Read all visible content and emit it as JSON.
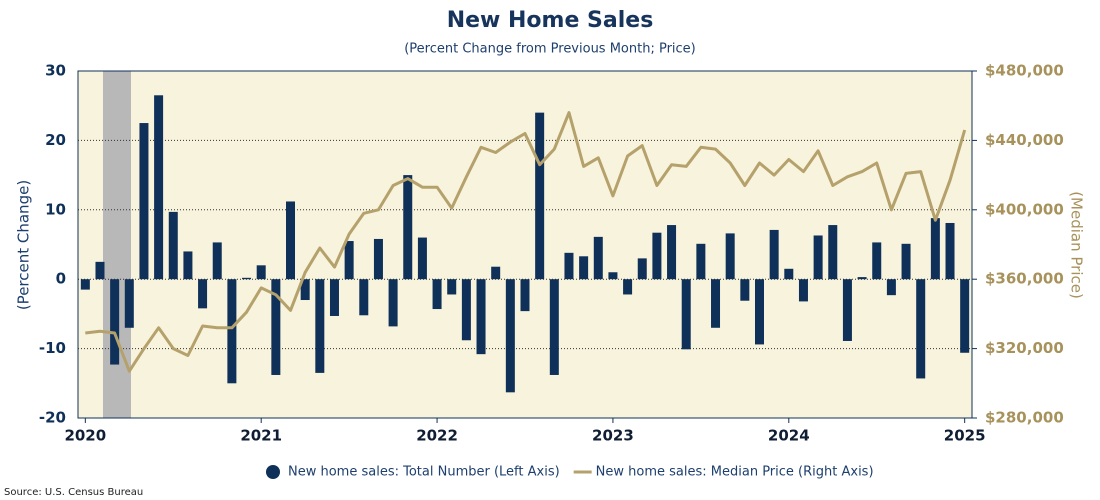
{
  "chart_data": {
    "type": "combo",
    "title": "New Home Sales",
    "subtitle": "(Percent Change from Previous Month; Price)",
    "y_label": "(Percent Change)",
    "y2_label": "(Median Price)",
    "source": "Source: U.S. Census Bureau",
    "categories": [
      "2020",
      null,
      null,
      null,
      null,
      null,
      null,
      null,
      null,
      null,
      null,
      null,
      "2021",
      null,
      null,
      null,
      null,
      null,
      null,
      null,
      null,
      null,
      null,
      null,
      "2022",
      null,
      null,
      null,
      null,
      null,
      null,
      null,
      null,
      null,
      null,
      null,
      "2023",
      null,
      null,
      null,
      null,
      null,
      null,
      null,
      null,
      null,
      null,
      null,
      "2024",
      null,
      null,
      null,
      null,
      null,
      null,
      null,
      null,
      null,
      null,
      null,
      "2025"
    ],
    "series": [
      {
        "name": "New home sales: Total Number (Left Axis)",
        "type": "bar",
        "color": "#0f3058",
        "values": [
          -1.5,
          2.5,
          -12.3,
          -7,
          22.5,
          26.5,
          9.7,
          4,
          -4.2,
          5.3,
          -15,
          0.2,
          2,
          -13.8,
          11.2,
          -3,
          -13.5,
          -5.3,
          5.5,
          -5.2,
          5.8,
          -6.8,
          15,
          6,
          -4.3,
          -2.2,
          -8.8,
          -10.8,
          1.8,
          -16.3,
          -4.6,
          24,
          -13.8,
          3.8,
          3.3,
          6.1,
          1,
          -2.2,
          3,
          6.7,
          7.8,
          -10.1,
          5.1,
          -7,
          6.6,
          -3.1,
          -9.4,
          7.1,
          1.5,
          -3.2,
          6.3,
          7.8,
          -8.9,
          0.3,
          5.3,
          -2.3,
          5.1,
          -14.3,
          8.8,
          8.1,
          -10.6
        ]
      },
      {
        "name": "New home sales: Median Price (Right Axis)",
        "type": "line",
        "axis": "y2",
        "color": "#b5a16c",
        "values": [
          329000,
          330000,
          329000,
          307000,
          320000,
          332000,
          320000,
          316000,
          333000,
          332000,
          332000,
          341000,
          355000,
          351000,
          342000,
          364000,
          378000,
          367000,
          386000,
          398000,
          400000,
          414000,
          418000,
          413000,
          413000,
          401000,
          419000,
          436000,
          433000,
          439000,
          444000,
          426000,
          435000,
          456000,
          425000,
          430000,
          408000,
          431000,
          437000,
          414000,
          426000,
          425000,
          436000,
          435000,
          427000,
          414000,
          427000,
          420000,
          429000,
          422000,
          434000,
          414000,
          419000,
          422000,
          427000,
          400000,
          421000,
          422000,
          394000,
          417000,
          446000
        ]
      }
    ],
    "ylim": [
      -20,
      30
    ],
    "yticks": [
      -20,
      -10,
      0,
      10,
      20,
      30
    ],
    "y2lim": [
      280000,
      480000
    ],
    "y2ticks": [
      {
        "value": 280000,
        "label": "$280,000"
      },
      {
        "value": 320000,
        "label": "$320,000"
      },
      {
        "value": 360000,
        "label": "$360,000"
      },
      {
        "value": 400000,
        "label": "$400,000"
      },
      {
        "value": 440000,
        "label": "$440,000"
      },
      {
        "value": 480000,
        "label": "$480,000"
      }
    ],
    "grid": true
  }
}
